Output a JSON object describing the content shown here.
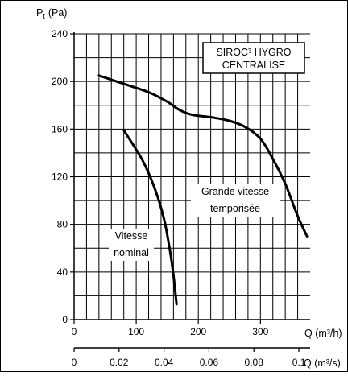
{
  "chart_data": {
    "type": "line",
    "title": "",
    "ylabel": "P",
    "ylabel_sub": "t",
    "ylabel_unit": "(Pa)",
    "xlabel_top": "Q (m³/h)",
    "xlabel_bottom": "Q (m³/s)",
    "xlim": [
      0,
      380
    ],
    "ylim": [
      0,
      240
    ],
    "x2lim": [
      0,
      0.105
    ],
    "yticks": [
      0,
      40,
      80,
      120,
      160,
      200,
      240
    ],
    "yticks_labels": [
      "0",
      "40",
      "80",
      "120",
      "160",
      "200",
      "240"
    ],
    "xticks": [
      0,
      100,
      200,
      300
    ],
    "xticks_labels": [
      "0",
      "100",
      "200",
      "300"
    ],
    "x2ticks": [
      0,
      0.02,
      0.04,
      0.06,
      0.08,
      0.1
    ],
    "x2ticks_labels": [
      "0",
      "0.02",
      "0.04",
      "0.06",
      "0.08",
      "0.1"
    ],
    "grid": true,
    "grid_lines_x": [
      20,
      40,
      60,
      80,
      100,
      120,
      140,
      160,
      180,
      200,
      220,
      240,
      260,
      280,
      300,
      320,
      340,
      360
    ],
    "grid_lines_y": [
      20,
      40,
      60,
      80,
      100,
      120,
      140,
      160,
      180,
      200,
      220,
      240
    ],
    "legend_box": {
      "line1": "SIROC³ HYGRO",
      "line2": "CENTRALISE",
      "placement": "top-right"
    },
    "series": [
      {
        "label_line1": "Grande vitesse",
        "label_line2": "temporisée",
        "color": "#000000",
        "points": [
          [
            40,
            205
          ],
          [
            80,
            198
          ],
          [
            120,
            191
          ],
          [
            150,
            183
          ],
          [
            170,
            176
          ],
          [
            190,
            172
          ],
          [
            220,
            170
          ],
          [
            250,
            167
          ],
          [
            275,
            162
          ],
          [
            300,
            152
          ],
          [
            320,
            135
          ],
          [
            340,
            114
          ],
          [
            360,
            87
          ],
          [
            375,
            70
          ]
        ]
      },
      {
        "label_line1": "Vitesse",
        "label_line2": "nominal",
        "color": "#000000",
        "points": [
          [
            80,
            159
          ],
          [
            110,
            134
          ],
          [
            130,
            110
          ],
          [
            145,
            84
          ],
          [
            155,
            56
          ],
          [
            160,
            37
          ],
          [
            165,
            13
          ]
        ]
      }
    ]
  }
}
